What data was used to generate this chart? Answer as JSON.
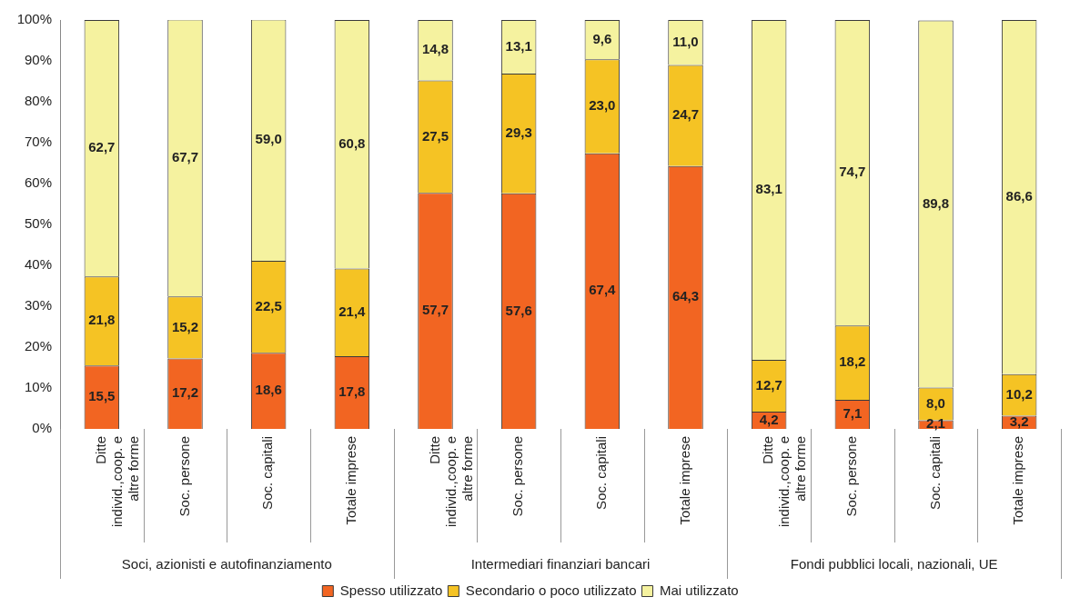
{
  "chart_data": {
    "type": "bar",
    "stacked": true,
    "legend": "bottom",
    "grid": false,
    "categories": [
      "Ditte individ.,coop. e altre forme",
      "Soc. persone",
      "Soc. capitali",
      "Totale imprese",
      "Ditte individ.,coop. e altre forme",
      "Soc. persone",
      "Soc. capitali",
      "Totale imprese",
      "Ditte individ.,coop. e altre forme",
      "Soc. persone",
      "Soc. capitali",
      "Totale imprese"
    ],
    "series": [
      {
        "name": "Spesso utilizzato",
        "color": "#f26522",
        "values": [
          15.5,
          17.2,
          18.6,
          17.8,
          57.7,
          57.6,
          67.4,
          64.3,
          4.2,
          7.1,
          2.1,
          3.2
        ],
        "value_labels": [
          "15,5",
          "17,2",
          "18,6",
          "17,8",
          "57,7",
          "57,6",
          "67,4",
          "64,3",
          "4,2",
          "7,1",
          "2,1",
          "3,2"
        ]
      },
      {
        "name": "Secondario o poco utilizzato",
        "color": "#f5c324",
        "values": [
          21.8,
          15.2,
          22.5,
          21.4,
          27.5,
          29.3,
          23.0,
          24.7,
          12.7,
          18.2,
          8.0,
          10.2
        ],
        "value_labels": [
          "21,8",
          "15,2",
          "22,5",
          "21,4",
          "27,5",
          "29,3",
          "23,0",
          "24,7",
          "12,7",
          "18,2",
          "8,0",
          "10,2"
        ]
      },
      {
        "name": "Mai utilizzato",
        "color": "#f5f29f",
        "values": [
          62.7,
          67.7,
          59.0,
          60.8,
          14.8,
          13.1,
          9.6,
          11.0,
          83.1,
          74.7,
          89.8,
          86.6
        ],
        "value_labels": [
          "62,7",
          "67,7",
          "59,0",
          "60,8",
          "14,8",
          "13,1",
          "9,6",
          "11,0",
          "83,1",
          "74,7",
          "89,8",
          "86,6"
        ]
      }
    ],
    "ylim": [
      0,
      100
    ],
    "yticks": [
      {
        "value": 0,
        "label": "0%"
      },
      {
        "value": 10,
        "label": "10%"
      },
      {
        "value": 20,
        "label": "20%"
      },
      {
        "value": 30,
        "label": "30%"
      },
      {
        "value": 40,
        "label": "40%"
      },
      {
        "value": 50,
        "label": "50%"
      },
      {
        "value": 60,
        "label": "60%"
      },
      {
        "value": 70,
        "label": "70%"
      },
      {
        "value": 80,
        "label": "80%"
      },
      {
        "value": 90,
        "label": "90%"
      },
      {
        "value": 100,
        "label": "100%"
      }
    ],
    "annotations": [
      "Soci, azionisti e autofinanziamento",
      "Intermediari finanziari bancari",
      "Fondi pubblici locali, nazionali, UE"
    ]
  }
}
